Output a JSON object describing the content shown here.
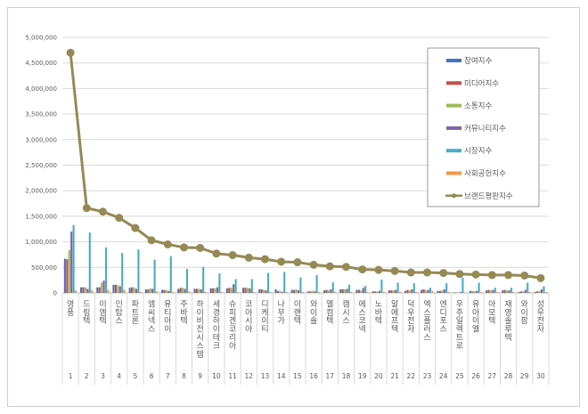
{
  "chart_data": {
    "type": "bar",
    "title": "",
    "xlabel": "",
    "ylabel": "",
    "ylim": [
      0,
      5000000
    ],
    "yticks": [
      "0",
      "500,000",
      "1,000,000",
      "1,500,000",
      "2,000,000",
      "2,500,000",
      "3,000,000",
      "3,500,000",
      "4,000,000",
      "4,500,000",
      "5,000,000"
    ],
    "grid": true,
    "legend_position": "top-right",
    "ranks": [
      "1",
      "2",
      "3",
      "4",
      "5",
      "6",
      "7",
      "8",
      "9",
      "10",
      "11",
      "12",
      "13",
      "14",
      "15",
      "16",
      "17",
      "18",
      "19",
      "20",
      "21",
      "22",
      "23",
      "24",
      "25",
      "26",
      "27",
      "28",
      "29",
      "30"
    ],
    "categories": [
      "영풍",
      "드림텍",
      "이엠텍",
      "인탑스",
      "파트론",
      "엠씨넥스",
      "유티아이",
      "주바텍",
      "하이비전시스템",
      "세경하이테크",
      "슈피겐코리아",
      "코아시아",
      "디케이티",
      "나무가",
      "이랜텍",
      "와이솔",
      "엘컴텍",
      "캠시스",
      "에스코넥",
      "노바텍",
      "알에프텍",
      "덕우전자",
      "엑스플러스",
      "엔디포스",
      "우주일렉트로",
      "유아이엘",
      "아모텍",
      "재영솔루텍",
      "와이팜",
      "성우전자"
    ],
    "series": [
      {
        "name": "참여지수",
        "color": "#4472c4",
        "kind": "bar",
        "values": [
          670000,
          110000,
          110000,
          160000,
          100000,
          70000,
          60000,
          80000,
          80000,
          90000,
          90000,
          100000,
          70000,
          70000,
          60000,
          30000,
          50000,
          70000,
          60000,
          30000,
          50000,
          40000,
          60000,
          40000,
          10000,
          40000,
          50000,
          50000,
          20000,
          20000
        ]
      },
      {
        "name": "미디어지수",
        "color": "#c0504d",
        "kind": "bar",
        "values": [
          660000,
          110000,
          110000,
          160000,
          110000,
          70000,
          60000,
          100000,
          80000,
          90000,
          100000,
          100000,
          70000,
          40000,
          60000,
          30000,
          60000,
          70000,
          60000,
          30000,
          50000,
          60000,
          70000,
          40000,
          10000,
          30000,
          60000,
          60000,
          30000,
          30000
        ]
      },
      {
        "name": "소통지수",
        "color": "#9bbb59",
        "kind": "bar",
        "values": [
          840000,
          110000,
          200000,
          150000,
          110000,
          90000,
          50000,
          100000,
          80000,
          90000,
          100000,
          100000,
          60000,
          40000,
          70000,
          40000,
          50000,
          70000,
          50000,
          30000,
          50000,
          50000,
          50000,
          50000,
          10000,
          40000,
          50000,
          50000,
          30000,
          40000
        ]
      },
      {
        "name": "커뮤니티지수",
        "color": "#8064a2",
        "kind": "bar",
        "values": [
          1200000,
          80000,
          240000,
          130000,
          80000,
          80000,
          40000,
          80000,
          70000,
          110000,
          170000,
          90000,
          50000,
          20000,
          50000,
          30000,
          70000,
          80000,
          100000,
          40000,
          60000,
          70000,
          60000,
          70000,
          20000,
          40000,
          60000,
          50000,
          60000,
          70000
        ]
      },
      {
        "name": "시장지수",
        "color": "#4bacc6",
        "kind": "bar",
        "values": [
          1330000,
          1180000,
          890000,
          780000,
          850000,
          650000,
          720000,
          470000,
          510000,
          380000,
          270000,
          270000,
          390000,
          410000,
          300000,
          350000,
          210000,
          160000,
          140000,
          260000,
          200000,
          190000,
          100000,
          190000,
          300000,
          200000,
          100000,
          100000,
          200000,
          130000
        ]
      },
      {
        "name": "사회공헌지수",
        "color": "#f79646",
        "kind": "bar",
        "values": [
          50000,
          50000,
          60000,
          60000,
          20000,
          30000,
          20000,
          30000,
          20000,
          20000,
          20000,
          20000,
          20000,
          20000,
          20000,
          20000,
          20000,
          20000,
          20000,
          20000,
          20000,
          20000,
          40000,
          20000,
          10000,
          20000,
          20000,
          20000,
          20000,
          20000
        ]
      },
      {
        "name": "브랜드평판지수",
        "color": "#948a54",
        "kind": "line",
        "values": [
          4700000,
          1660000,
          1590000,
          1470000,
          1270000,
          1030000,
          950000,
          890000,
          880000,
          770000,
          740000,
          690000,
          660000,
          610000,
          600000,
          550000,
          520000,
          510000,
          460000,
          450000,
          430000,
          400000,
          400000,
          390000,
          370000,
          360000,
          350000,
          350000,
          340000,
          290000
        ]
      }
    ]
  }
}
